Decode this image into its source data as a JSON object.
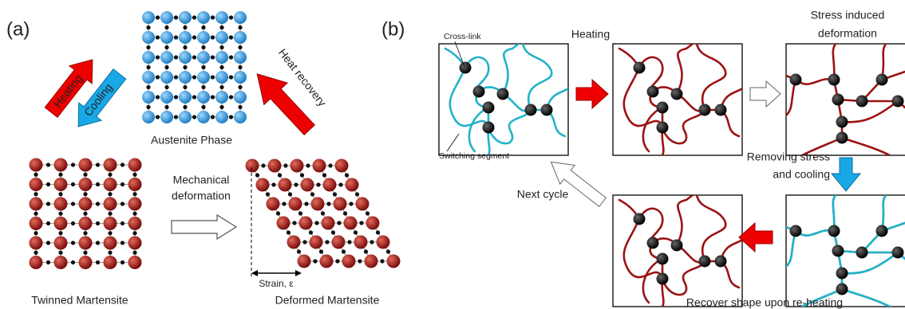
{
  "panel_a": {
    "label": "(a)",
    "heating": "Heating",
    "cooling": "Cooling",
    "austenite": "Austenite Phase",
    "heat_recovery": "Heat recovery",
    "mechanical_deformation": [
      "Mechanical",
      "deformation"
    ],
    "twinned": "Twinned Martensite",
    "deformed": "Deformed Martensite",
    "strain": "Strain, ε"
  },
  "panel_b": {
    "label": "(b)",
    "cross_link": "Cross-link",
    "heating": "Heating",
    "stress_induced": [
      "Stress induced",
      "deformation"
    ],
    "switching_segment": "Switching segment",
    "removing_stress": [
      "Removing stress",
      "and cooling"
    ],
    "next_cycle": "Next cycle",
    "recover": "Recover shape upon re-heating"
  }
}
